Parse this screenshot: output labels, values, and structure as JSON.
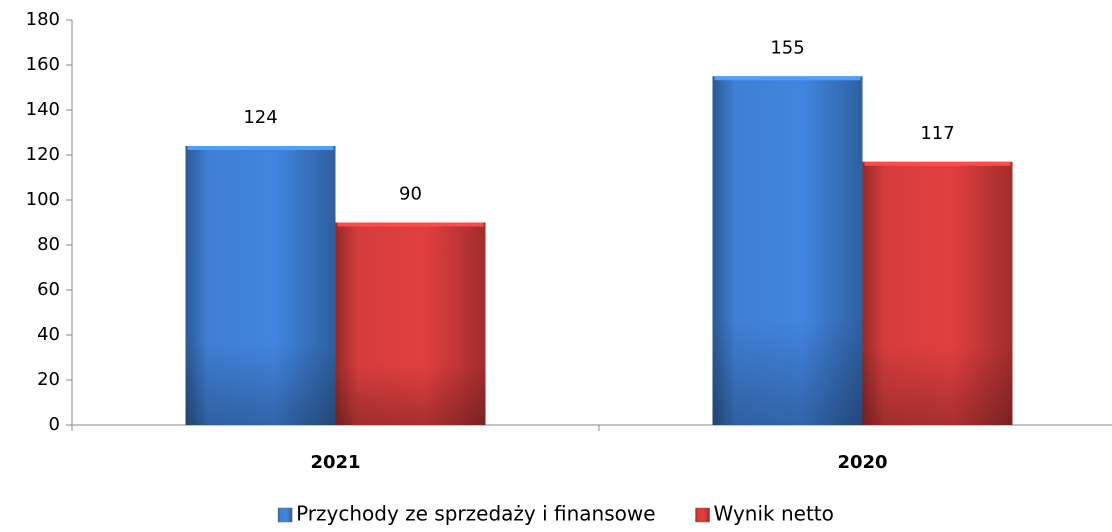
{
  "chart_data": {
    "type": "bar",
    "categories": [
      "2021",
      "2020"
    ],
    "series": [
      {
        "name": "Przychody ze sprzedaży i finansowe",
        "color": "#3f7fd4",
        "values": [
          124,
          155
        ]
      },
      {
        "name": "Wynik netto",
        "color": "#d63c3c",
        "values": [
          90,
          117
        ]
      }
    ],
    "ylim": [
      0,
      180
    ],
    "yticks": [
      0,
      20,
      40,
      60,
      80,
      100,
      120,
      140,
      160,
      180
    ],
    "legend": "bottom"
  }
}
